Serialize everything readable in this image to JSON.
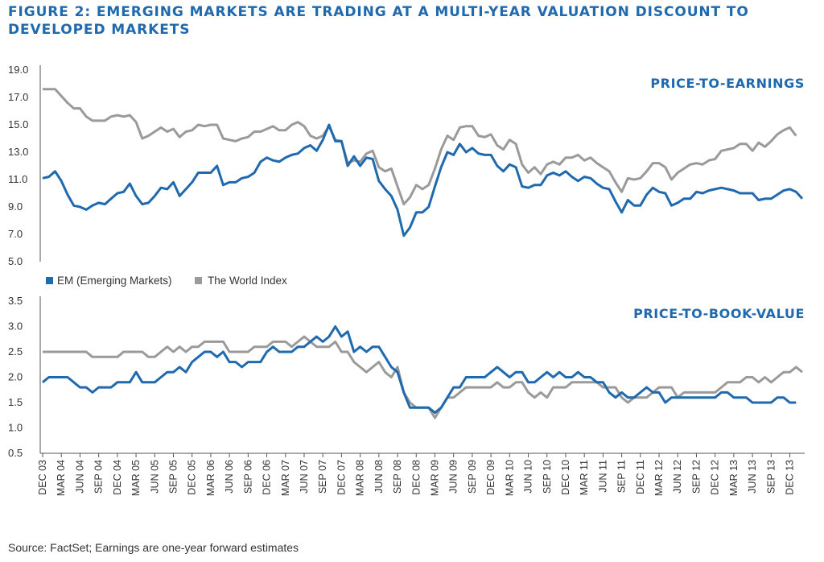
{
  "figure": {
    "title": "FIGURE 2: EMERGING MARKETS ARE TRADING AT A MULTI-YEAR VALUATION DISCOUNT TO DEVELOPED MARKETS",
    "source": "Source: FactSet; Earnings are one-year forward estimates"
  },
  "colors": {
    "em": "#1f69ae",
    "world": "#9a9a9a",
    "axis": "#555555"
  },
  "legend": {
    "em_label": "EM (Emerging Markets)",
    "world_label": "The World Index"
  },
  "chart_data": [
    {
      "type": "line",
      "title": "PRICE-TO-EARNINGS",
      "ylim": [
        5.0,
        19.0
      ],
      "yticks": [
        "5.0",
        "7.0",
        "9.0",
        "11.0",
        "13.0",
        "15.0",
        "17.0",
        "19.0"
      ],
      "x_tick_labels": [
        "DEC 03",
        "MAR 04",
        "JUN 04",
        "SEP 04",
        "DEC 04",
        "MAR 05",
        "JUN 05",
        "SEP 05",
        "DEC 05",
        "MAR 06",
        "JUN 06",
        "SEP 06",
        "DEC 06",
        "MAR 07",
        "JUN 07",
        "SEP 07",
        "DEC 07",
        "MAR 08",
        "JUN 08",
        "SEP 08",
        "DEC 08",
        "MAR 09",
        "JUN 09",
        "SEP 09",
        "DEC 09",
        "MAR 10",
        "JUN 10",
        "SEP 10",
        "DEC 10",
        "MAR 11",
        "JUN 11",
        "SEP 11",
        "DEC 11",
        "MAR 12",
        "JUN 12",
        "SEP 12",
        "DEC 12",
        "MAR 13",
        "JUN 13",
        "SEP 13",
        "DEC 13"
      ],
      "series": [
        {
          "name": "EM (Emerging Markets)",
          "values": [
            11.1,
            11.2,
            11.6,
            10.9,
            9.9,
            9.1,
            9.0,
            8.8,
            9.1,
            9.3,
            9.2,
            9.6,
            10.0,
            10.1,
            10.7,
            9.8,
            9.2,
            9.3,
            9.8,
            10.4,
            10.3,
            10.8,
            9.8,
            10.3,
            10.8,
            11.5,
            11.5,
            11.5,
            12.0,
            10.6,
            10.8,
            10.8,
            11.1,
            11.2,
            11.5,
            12.3,
            12.6,
            12.4,
            12.3,
            12.6,
            12.8,
            12.9,
            13.3,
            13.5,
            13.1,
            13.9,
            15.0,
            13.8,
            13.8,
            12.0,
            12.7,
            12.0,
            12.6,
            12.5,
            10.9,
            10.3,
            9.8,
            8.8,
            6.9,
            7.5,
            8.6,
            8.6,
            9.0,
            10.5,
            11.9,
            13.0,
            12.8,
            13.6,
            13.0,
            13.3,
            12.9,
            12.8,
            12.8,
            12.0,
            11.6,
            12.1,
            11.9,
            10.5,
            10.4,
            10.6,
            10.6,
            11.3,
            11.5,
            11.3,
            11.6,
            11.2,
            10.9,
            11.2,
            11.1,
            10.7,
            10.4,
            10.3,
            9.4,
            8.6,
            9.5,
            9.1,
            9.1,
            9.9,
            10.4,
            10.1,
            10.0,
            9.1,
            9.3,
            9.6,
            9.6,
            10.1,
            10.0,
            10.2,
            10.3,
            10.4,
            10.3,
            10.2,
            10.0,
            10.0,
            10.0,
            9.5,
            9.6,
            9.6,
            9.9,
            10.2,
            10.3,
            10.1,
            9.6
          ]
        },
        {
          "name": "The World Index",
          "values": [
            17.6,
            17.6,
            17.6,
            17.1,
            16.6,
            16.2,
            16.2,
            15.6,
            15.3,
            15.3,
            15.3,
            15.6,
            15.7,
            15.6,
            15.7,
            15.2,
            14.0,
            14.2,
            14.5,
            14.8,
            14.5,
            14.7,
            14.1,
            14.5,
            14.6,
            15.0,
            14.9,
            15.0,
            15.0,
            14.0,
            13.9,
            13.8,
            14.0,
            14.1,
            14.5,
            14.5,
            14.7,
            14.9,
            14.6,
            14.6,
            15.0,
            15.2,
            14.9,
            14.2,
            14.0,
            14.2,
            14.9,
            13.9,
            13.8,
            12.2,
            12.4,
            12.3,
            12.9,
            13.1,
            11.9,
            11.6,
            11.8,
            10.5,
            9.2,
            9.7,
            10.6,
            10.3,
            10.6,
            11.8,
            13.2,
            14.2,
            13.9,
            14.8,
            14.9,
            14.9,
            14.2,
            14.1,
            14.3,
            13.5,
            13.2,
            13.9,
            13.6,
            12.1,
            11.5,
            11.9,
            11.4,
            12.1,
            12.3,
            12.1,
            12.6,
            12.6,
            12.8,
            12.4,
            12.6,
            12.2,
            11.9,
            11.6,
            10.8,
            10.1,
            11.1,
            11.0,
            11.1,
            11.6,
            12.2,
            12.2,
            11.9,
            11.0,
            11.5,
            11.8,
            12.1,
            12.2,
            12.1,
            12.4,
            12.5,
            13.1,
            13.2,
            13.3,
            13.6,
            13.6,
            13.1,
            13.7,
            13.4,
            13.8,
            14.3,
            14.6,
            14.8,
            14.2
          ]
        }
      ]
    },
    {
      "type": "line",
      "title": "PRICE-TO-BOOK-VALUE",
      "ylim": [
        0.5,
        3.5
      ],
      "yticks": [
        "0.5",
        "1.0",
        "1.5",
        "2.0",
        "2.5",
        "3.0",
        "3.5"
      ],
      "x_tick_labels": [
        "DEC 03",
        "MAR 04",
        "JUN 04",
        "SEP 04",
        "DEC 04",
        "MAR 05",
        "JUN 05",
        "SEP 05",
        "DEC 05",
        "MAR 06",
        "JUN 06",
        "SEP 06",
        "DEC 06",
        "MAR 07",
        "JUN 07",
        "SEP 07",
        "DEC 07",
        "MAR 08",
        "JUN 08",
        "SEP 08",
        "DEC 08",
        "MAR 09",
        "JUN 09",
        "SEP 09",
        "DEC 09",
        "MAR 10",
        "JUN 10",
        "SEP 10",
        "DEC 10",
        "MAR 11",
        "JUN 11",
        "SEP 11",
        "DEC 11",
        "MAR 12",
        "JUN 12",
        "SEP 12",
        "DEC 12",
        "MAR 13",
        "JUN 13",
        "SEP 13",
        "DEC 13"
      ],
      "series": [
        {
          "name": "EM (Emerging Markets)",
          "values": [
            1.9,
            2.0,
            2.0,
            2.0,
            2.0,
            1.9,
            1.8,
            1.8,
            1.7,
            1.8,
            1.8,
            1.8,
            1.9,
            1.9,
            1.9,
            2.1,
            1.9,
            1.9,
            1.9,
            2.0,
            2.1,
            2.1,
            2.2,
            2.1,
            2.3,
            2.4,
            2.5,
            2.5,
            2.4,
            2.5,
            2.3,
            2.3,
            2.2,
            2.3,
            2.3,
            2.3,
            2.5,
            2.6,
            2.5,
            2.5,
            2.5,
            2.6,
            2.6,
            2.7,
            2.8,
            2.7,
            2.8,
            3.0,
            2.8,
            2.9,
            2.5,
            2.6,
            2.5,
            2.6,
            2.6,
            2.4,
            2.2,
            2.1,
            1.7,
            1.4,
            1.4,
            1.4,
            1.4,
            1.3,
            1.4,
            1.6,
            1.8,
            1.8,
            2.0,
            2.0,
            2.0,
            2.0,
            2.1,
            2.2,
            2.1,
            2.0,
            2.1,
            2.1,
            1.9,
            1.9,
            2.0,
            2.1,
            2.0,
            2.1,
            2.0,
            2.0,
            2.1,
            2.0,
            2.0,
            1.9,
            1.9,
            1.7,
            1.6,
            1.7,
            1.6,
            1.6,
            1.7,
            1.8,
            1.7,
            1.7,
            1.5,
            1.6,
            1.6,
            1.6,
            1.6,
            1.6,
            1.6,
            1.6,
            1.6,
            1.7,
            1.7,
            1.6,
            1.6,
            1.6,
            1.5,
            1.5,
            1.5,
            1.5,
            1.6,
            1.6,
            1.5,
            1.5
          ]
        },
        {
          "name": "The World Index",
          "values": [
            2.5,
            2.5,
            2.5,
            2.5,
            2.5,
            2.5,
            2.5,
            2.5,
            2.4,
            2.4,
            2.4,
            2.4,
            2.4,
            2.5,
            2.5,
            2.5,
            2.5,
            2.4,
            2.4,
            2.5,
            2.6,
            2.5,
            2.6,
            2.5,
            2.6,
            2.6,
            2.7,
            2.7,
            2.7,
            2.7,
            2.5,
            2.5,
            2.5,
            2.5,
            2.6,
            2.6,
            2.6,
            2.7,
            2.7,
            2.7,
            2.6,
            2.7,
            2.8,
            2.7,
            2.6,
            2.6,
            2.6,
            2.7,
            2.5,
            2.5,
            2.3,
            2.2,
            2.1,
            2.2,
            2.3,
            2.1,
            2.0,
            2.2,
            1.7,
            1.5,
            1.4,
            1.4,
            1.4,
            1.2,
            1.4,
            1.6,
            1.6,
            1.7,
            1.8,
            1.8,
            1.8,
            1.8,
            1.8,
            1.9,
            1.8,
            1.8,
            1.9,
            1.9,
            1.7,
            1.6,
            1.7,
            1.6,
            1.8,
            1.8,
            1.8,
            1.9,
            1.9,
            1.9,
            1.9,
            1.9,
            1.8,
            1.8,
            1.8,
            1.6,
            1.5,
            1.6,
            1.6,
            1.6,
            1.7,
            1.8,
            1.8,
            1.8,
            1.6,
            1.7,
            1.7,
            1.7,
            1.7,
            1.7,
            1.7,
            1.8,
            1.9,
            1.9,
            1.9,
            2.0,
            2.0,
            1.9,
            2.0,
            1.9,
            2.0,
            2.1,
            2.1,
            2.2,
            2.1
          ]
        }
      ]
    }
  ]
}
